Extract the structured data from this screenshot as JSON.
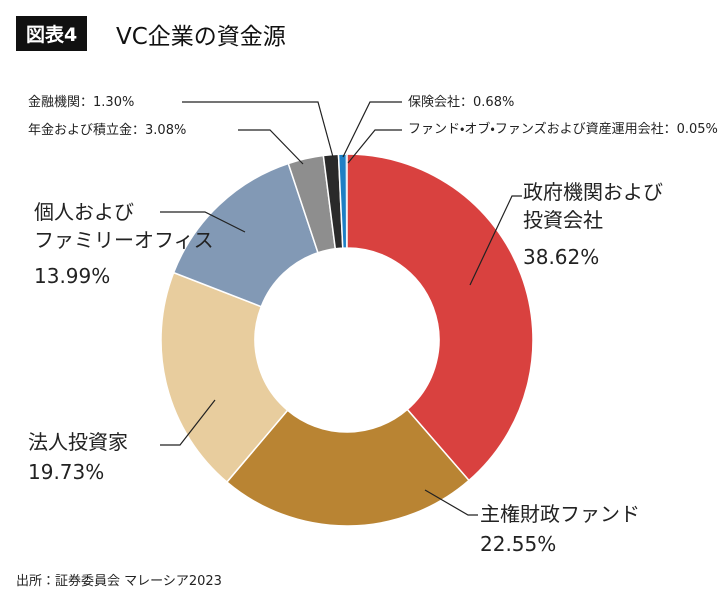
{
  "badge": "図表4",
  "source": "出所：証券委員会 マレーシア2023",
  "chart_data": {
    "type": "donut",
    "title": "VC企業の資金源",
    "categories": [
      "政府機関および\n投資会社",
      "主権財政ファンド",
      "法人投資家",
      "個人および\nファミリーオフィス",
      "年金および積立金",
      "金融機関",
      "保険会社",
      "ファンド・オブ・ファンズおよび資産運用会社"
    ],
    "values": [
      38.62,
      22.55,
      19.73,
      13.99,
      3.08,
      1.3,
      0.68,
      0.05
    ],
    "value_labels": [
      "38.62%",
      "22.55%",
      "19.73%",
      "13.99%",
      "：3.08%",
      "：1.30%",
      "：0.68%",
      "：0.05%"
    ],
    "colors": [
      "#d9413f",
      "#b98433",
      "#e8cd9e",
      "#8299b5",
      "#8e8e8e",
      "#2a2a2a",
      "#1e7fc4",
      "#7cc6ea"
    ]
  }
}
